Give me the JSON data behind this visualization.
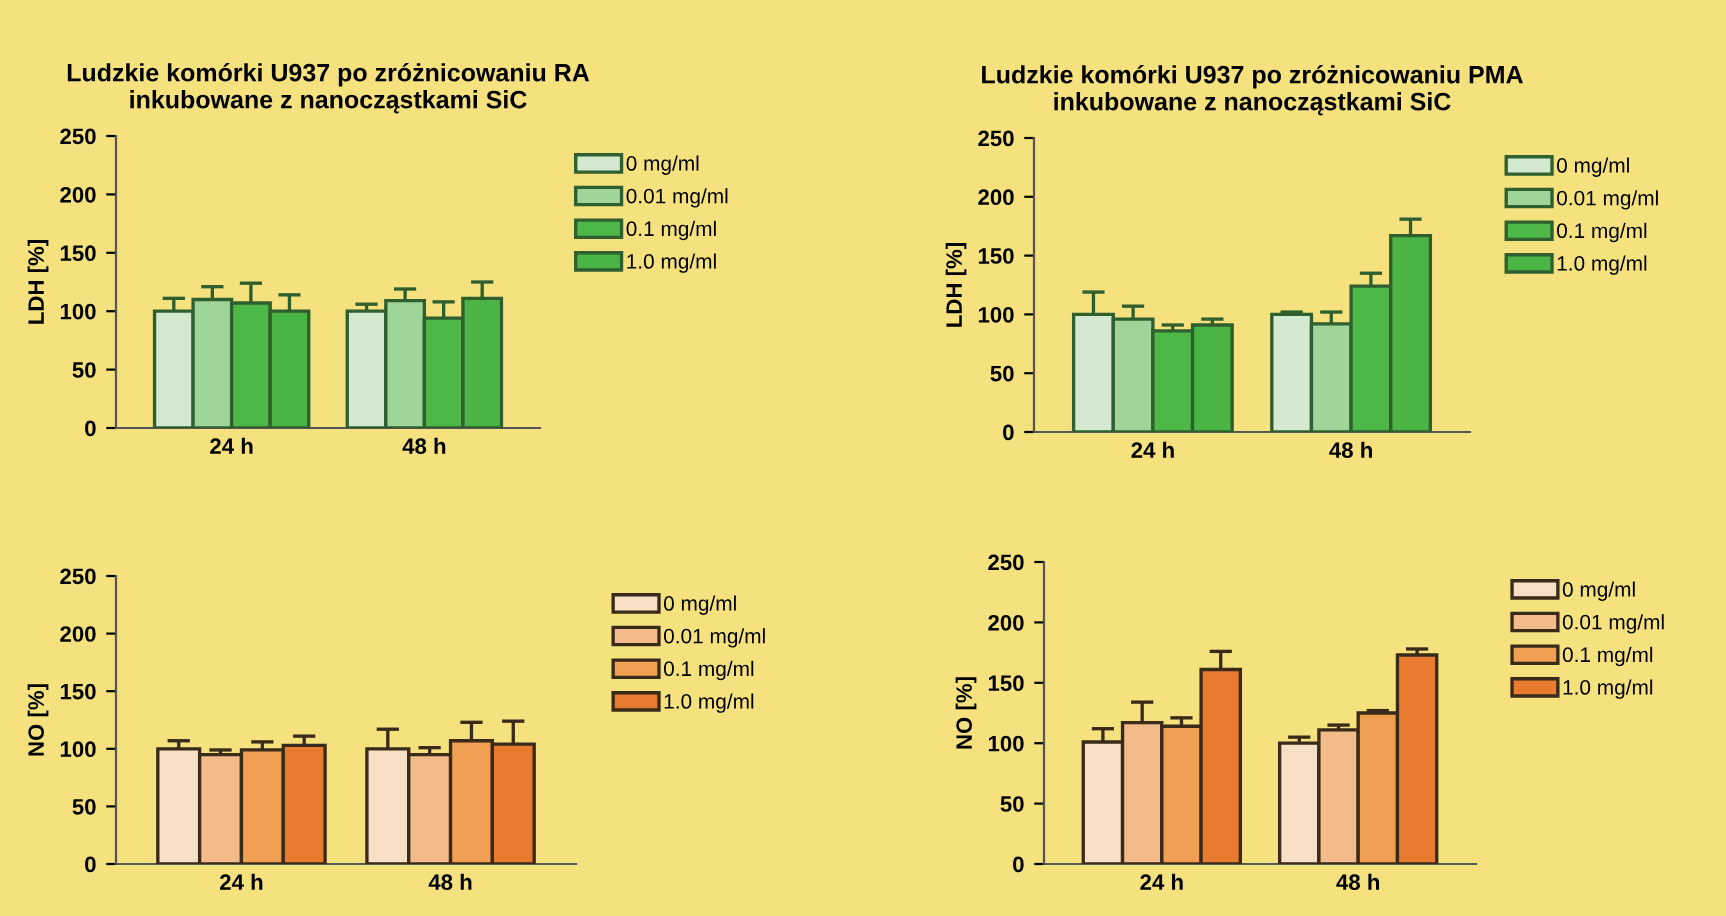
{
  "chart_data": [
    {
      "type": "bar",
      "title": "Ludzkie komórki U937 po zróżnicowaniu RA\ninkubowane z nanocząstkami SiC",
      "ylabel": "LDH [%]",
      "categories": [
        "24 h",
        "48 h"
      ],
      "ylim": [
        0,
        250
      ],
      "yticks": [
        0,
        50,
        100,
        150,
        200,
        250
      ],
      "grid": false,
      "legend": "right",
      "series": [
        {
          "name": "0 mg/ml",
          "color": "#d3e9cf",
          "values": [
            100,
            100
          ],
          "errors": [
            11,
            6
          ]
        },
        {
          "name": "0.01 mg/ml",
          "color": "#a0d59a",
          "values": [
            110,
            109
          ],
          "errors": [
            11,
            10
          ]
        },
        {
          "name": "0.1 mg/ml",
          "color": "#4db848",
          "values": [
            107,
            94
          ],
          "errors": [
            17,
            14
          ]
        },
        {
          "name": "1.0 mg/ml",
          "color": "#4ab445",
          "values": [
            100,
            111
          ],
          "errors": [
            14,
            14
          ]
        }
      ]
    },
    {
      "type": "bar",
      "title": "Ludzkie komórki U937 po zróżnicowaniu PMA\ninkubowane z nanocząstkami SiC",
      "ylabel": "LDH [%]",
      "categories": [
        "24 h",
        "48 h"
      ],
      "ylim": [
        0,
        250
      ],
      "yticks": [
        0,
        50,
        100,
        150,
        200,
        250
      ],
      "grid": false,
      "legend": "right",
      "series": [
        {
          "name": "0 mg/ml",
          "color": "#d3e9cf",
          "values": [
            100,
            100
          ],
          "errors": [
            19,
            2
          ]
        },
        {
          "name": "0.01 mg/ml",
          "color": "#a0d59a",
          "values": [
            96,
            92
          ],
          "errors": [
            11,
            10
          ]
        },
        {
          "name": "0.1 mg/ml",
          "color": "#4db848",
          "values": [
            86,
            124
          ],
          "errors": [
            5,
            11
          ]
        },
        {
          "name": "1.0 mg/ml",
          "color": "#4ab445",
          "values": [
            91,
            167
          ],
          "errors": [
            5,
            14
          ]
        }
      ]
    },
    {
      "type": "bar",
      "ylabel": "NO [%]",
      "categories": [
        "24 h",
        "48 h"
      ],
      "ylim": [
        0,
        250
      ],
      "yticks": [
        0,
        50,
        100,
        150,
        200,
        250
      ],
      "grid": false,
      "legend": "right",
      "series": [
        {
          "name": "0 mg/ml",
          "color": "#f6dfc4",
          "values": [
            100,
            100
          ],
          "errors": [
            7,
            17
          ]
        },
        {
          "name": "0.01 mg/ml",
          "color": "#f3bb8a",
          "values": [
            95,
            95
          ],
          "errors": [
            4,
            6
          ]
        },
        {
          "name": "0.1 mg/ml",
          "color": "#f0a052",
          "values": [
            99,
            107
          ],
          "errors": [
            7,
            16
          ]
        },
        {
          "name": "1.0 mg/ml",
          "color": "#e97b30",
          "values": [
            103,
            104
          ],
          "errors": [
            8,
            20
          ]
        }
      ]
    },
    {
      "type": "bar",
      "ylabel": "NO [%]",
      "categories": [
        "24 h",
        "48 h"
      ],
      "ylim": [
        0,
        250
      ],
      "yticks": [
        0,
        50,
        100,
        150,
        200,
        250
      ],
      "grid": false,
      "legend": "right",
      "series": [
        {
          "name": "0 mg/ml",
          "color": "#f6dfc4",
          "values": [
            101,
            100
          ],
          "errors": [
            11,
            5
          ]
        },
        {
          "name": "0.01 mg/ml",
          "color": "#f3bb8a",
          "values": [
            117,
            111
          ],
          "errors": [
            17,
            4
          ]
        },
        {
          "name": "0.1 mg/ml",
          "color": "#f0a052",
          "values": [
            114,
            125
          ],
          "errors": [
            7,
            2
          ]
        },
        {
          "name": "1.0 mg/ml",
          "color": "#e97b30",
          "values": [
            161,
            173
          ],
          "errors": [
            15,
            5
          ]
        }
      ]
    }
  ]
}
